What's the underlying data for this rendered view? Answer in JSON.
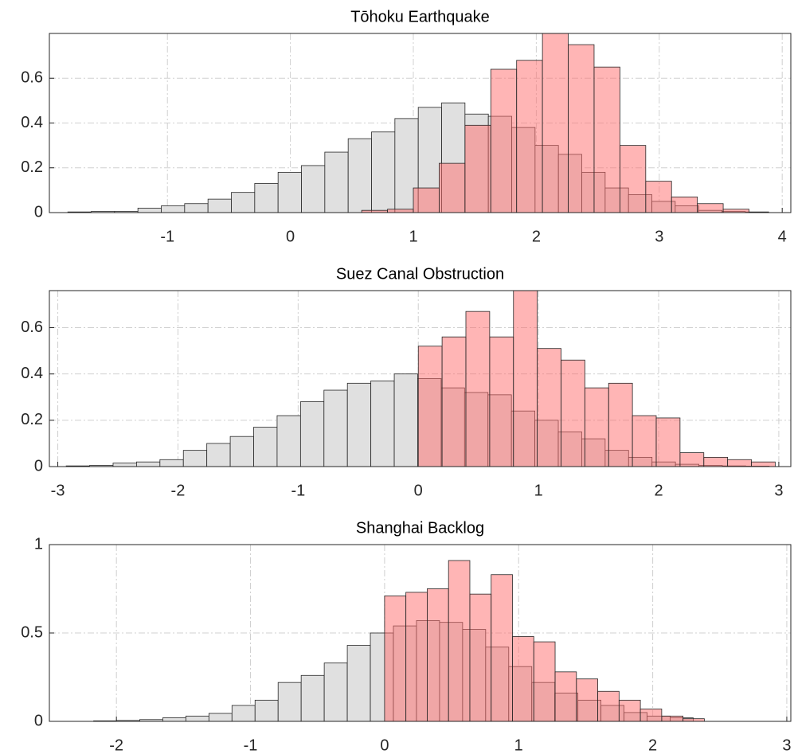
{
  "chart_data": [
    {
      "type": "histogram",
      "title": "Tōhoku Earthquake",
      "xlim": [
        -1.96,
        4.07
      ],
      "ylim": [
        0,
        0.8
      ],
      "xticks": [
        -1,
        0,
        1,
        2,
        3,
        4
      ],
      "yticks": [
        0,
        0.2,
        0.4,
        0.6
      ],
      "grid": true,
      "series": [
        {
          "color": "#e0e0e0",
          "bins": [
            -1.81,
            -1.62,
            -1.43,
            -1.24,
            -1.05,
            -0.86,
            -0.67,
            -0.48,
            -0.29,
            -0.1,
            0.09,
            0.28,
            0.47,
            0.66,
            0.85,
            1.04,
            1.23,
            1.42,
            1.61,
            1.8,
            1.99,
            2.18,
            2.37,
            2.56,
            2.75,
            2.94,
            3.13,
            3.32,
            3.51,
            3.7,
            3.89
          ],
          "values": [
            0.003,
            0.005,
            0.005,
            0.02,
            0.03,
            0.04,
            0.06,
            0.09,
            0.13,
            0.18,
            0.21,
            0.27,
            0.33,
            0.36,
            0.42,
            0.47,
            0.49,
            0.44,
            0.43,
            0.38,
            0.3,
            0.26,
            0.18,
            0.11,
            0.08,
            0.05,
            0.03,
            0.01,
            0.005,
            0.003
          ]
        },
        {
          "color": "#ff6b6b",
          "bins": [
            0.58,
            0.79,
            1.0,
            1.21,
            1.42,
            1.63,
            1.84,
            2.05,
            2.26,
            2.47,
            2.68,
            2.89,
            3.1,
            3.31,
            3.52,
            3.73
          ],
          "values": [
            0.01,
            0.015,
            0.11,
            0.22,
            0.39,
            0.64,
            0.68,
            0.8,
            0.75,
            0.65,
            0.3,
            0.14,
            0.07,
            0.04,
            0.015
          ]
        }
      ]
    },
    {
      "type": "histogram",
      "title": "Suez Canal Obstruction",
      "xlim": [
        -3.07,
        3.1
      ],
      "ylim": [
        0,
        0.76
      ],
      "xticks": [
        -3,
        -2,
        -1,
        0,
        1,
        2,
        3
      ],
      "yticks": [
        0,
        0.2,
        0.4,
        0.6
      ],
      "grid": true,
      "series": [
        {
          "color": "#e0e0e0",
          "bins": [
            -2.93,
            -2.735,
            -2.54,
            -2.345,
            -2.15,
            -1.955,
            -1.76,
            -1.565,
            -1.37,
            -1.175,
            -0.98,
            -0.785,
            -0.59,
            -0.395,
            -0.2,
            -0.005,
            0.19,
            0.385,
            0.58,
            0.775,
            0.97,
            1.165,
            1.36,
            1.555,
            1.75,
            1.945,
            2.14,
            2.335,
            2.53,
            2.725,
            2.92
          ],
          "values": [
            0.003,
            0.005,
            0.015,
            0.02,
            0.03,
            0.07,
            0.1,
            0.13,
            0.17,
            0.22,
            0.28,
            0.33,
            0.36,
            0.37,
            0.4,
            0.38,
            0.34,
            0.32,
            0.31,
            0.24,
            0.2,
            0.15,
            0.12,
            0.07,
            0.04,
            0.02,
            0.01,
            0.005,
            0.003,
            0.002
          ]
        },
        {
          "color": "#ff6b6b",
          "bins": [
            0,
            0.198,
            0.396,
            0.594,
            0.792,
            0.99,
            1.188,
            1.386,
            1.584,
            1.782,
            1.98,
            2.178,
            2.376,
            2.574,
            2.772,
            2.97
          ],
          "values": [
            0.52,
            0.56,
            0.67,
            0.56,
            0.76,
            0.51,
            0.46,
            0.34,
            0.36,
            0.22,
            0.21,
            0.06,
            0.04,
            0.03,
            0.02
          ]
        }
      ]
    },
    {
      "type": "histogram",
      "title": "Shanghai Backlog",
      "xlim": [
        -2.5,
        3.03
      ],
      "ylim": [
        0,
        1
      ],
      "xticks": [
        -2,
        -1,
        0,
        1,
        2,
        3
      ],
      "yticks": [
        0,
        0.5,
        1
      ],
      "grid": true,
      "series": [
        {
          "color": "#e0e0e0",
          "bins": [
            -2.17,
            -1.998,
            -1.826,
            -1.654,
            -1.482,
            -1.31,
            -1.138,
            -0.966,
            -0.794,
            -0.622,
            -0.45,
            -0.278,
            -0.106,
            0.066,
            0.238,
            0.41,
            0.582,
            0.754,
            0.926,
            1.098,
            1.27,
            1.442,
            1.614,
            1.786,
            1.958,
            2.13,
            2.302
          ],
          "values": [
            0.003,
            0.005,
            0.01,
            0.02,
            0.03,
            0.045,
            0.09,
            0.12,
            0.22,
            0.26,
            0.33,
            0.43,
            0.5,
            0.54,
            0.57,
            0.56,
            0.52,
            0.42,
            0.31,
            0.22,
            0.16,
            0.12,
            0.09,
            0.05,
            0.03,
            0.02
          ]
        },
        {
          "color": "#ff6b6b",
          "bins": [
            0,
            0.159,
            0.318,
            0.477,
            0.636,
            0.795,
            0.954,
            1.113,
            1.272,
            1.431,
            1.59,
            1.749,
            1.908,
            2.067,
            2.226,
            2.385
          ],
          "values": [
            0.71,
            0.73,
            0.75,
            0.91,
            0.72,
            0.83,
            0.48,
            0.45,
            0.28,
            0.24,
            0.17,
            0.12,
            0.07,
            0.03,
            0.015
          ]
        }
      ]
    }
  ]
}
